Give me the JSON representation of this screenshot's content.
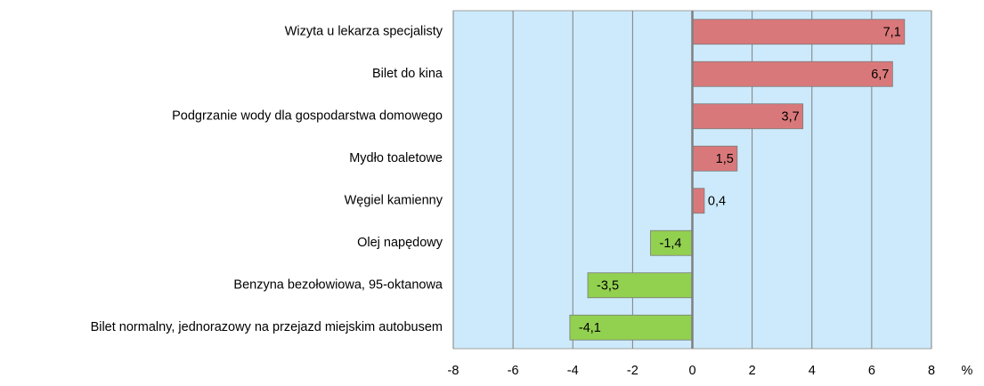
{
  "chart_data": {
    "type": "barh",
    "categories": [
      "Wizyta u lekarza specjalisty",
      "Bilet do kina",
      "Podgrzanie wody dla gospodarstwa domowego",
      "Mydło toaletowe",
      "Węgiel kamienny",
      "Olej napędowy",
      "Benzyna bezołowiowa, 95-oktanowa",
      "Bilet normalny, jednorazowy na przejazd miejskim autobusem"
    ],
    "values": [
      7.1,
      6.7,
      3.7,
      1.5,
      0.4,
      -1.4,
      -3.5,
      -4.1
    ],
    "value_labels": [
      "7,1",
      "6,7",
      "3,7",
      "1,5",
      "0,4",
      "-1,4",
      "-3,5",
      "-4,1"
    ],
    "positive_color": "#d9787a",
    "negative_color": "#92d050",
    "background": "#cceafb",
    "xlim": [
      -8,
      8
    ],
    "xticks": [
      -8,
      -6,
      -4,
      -2,
      0,
      2,
      4,
      6,
      8
    ],
    "grid": true,
    "xlabel": "%"
  }
}
